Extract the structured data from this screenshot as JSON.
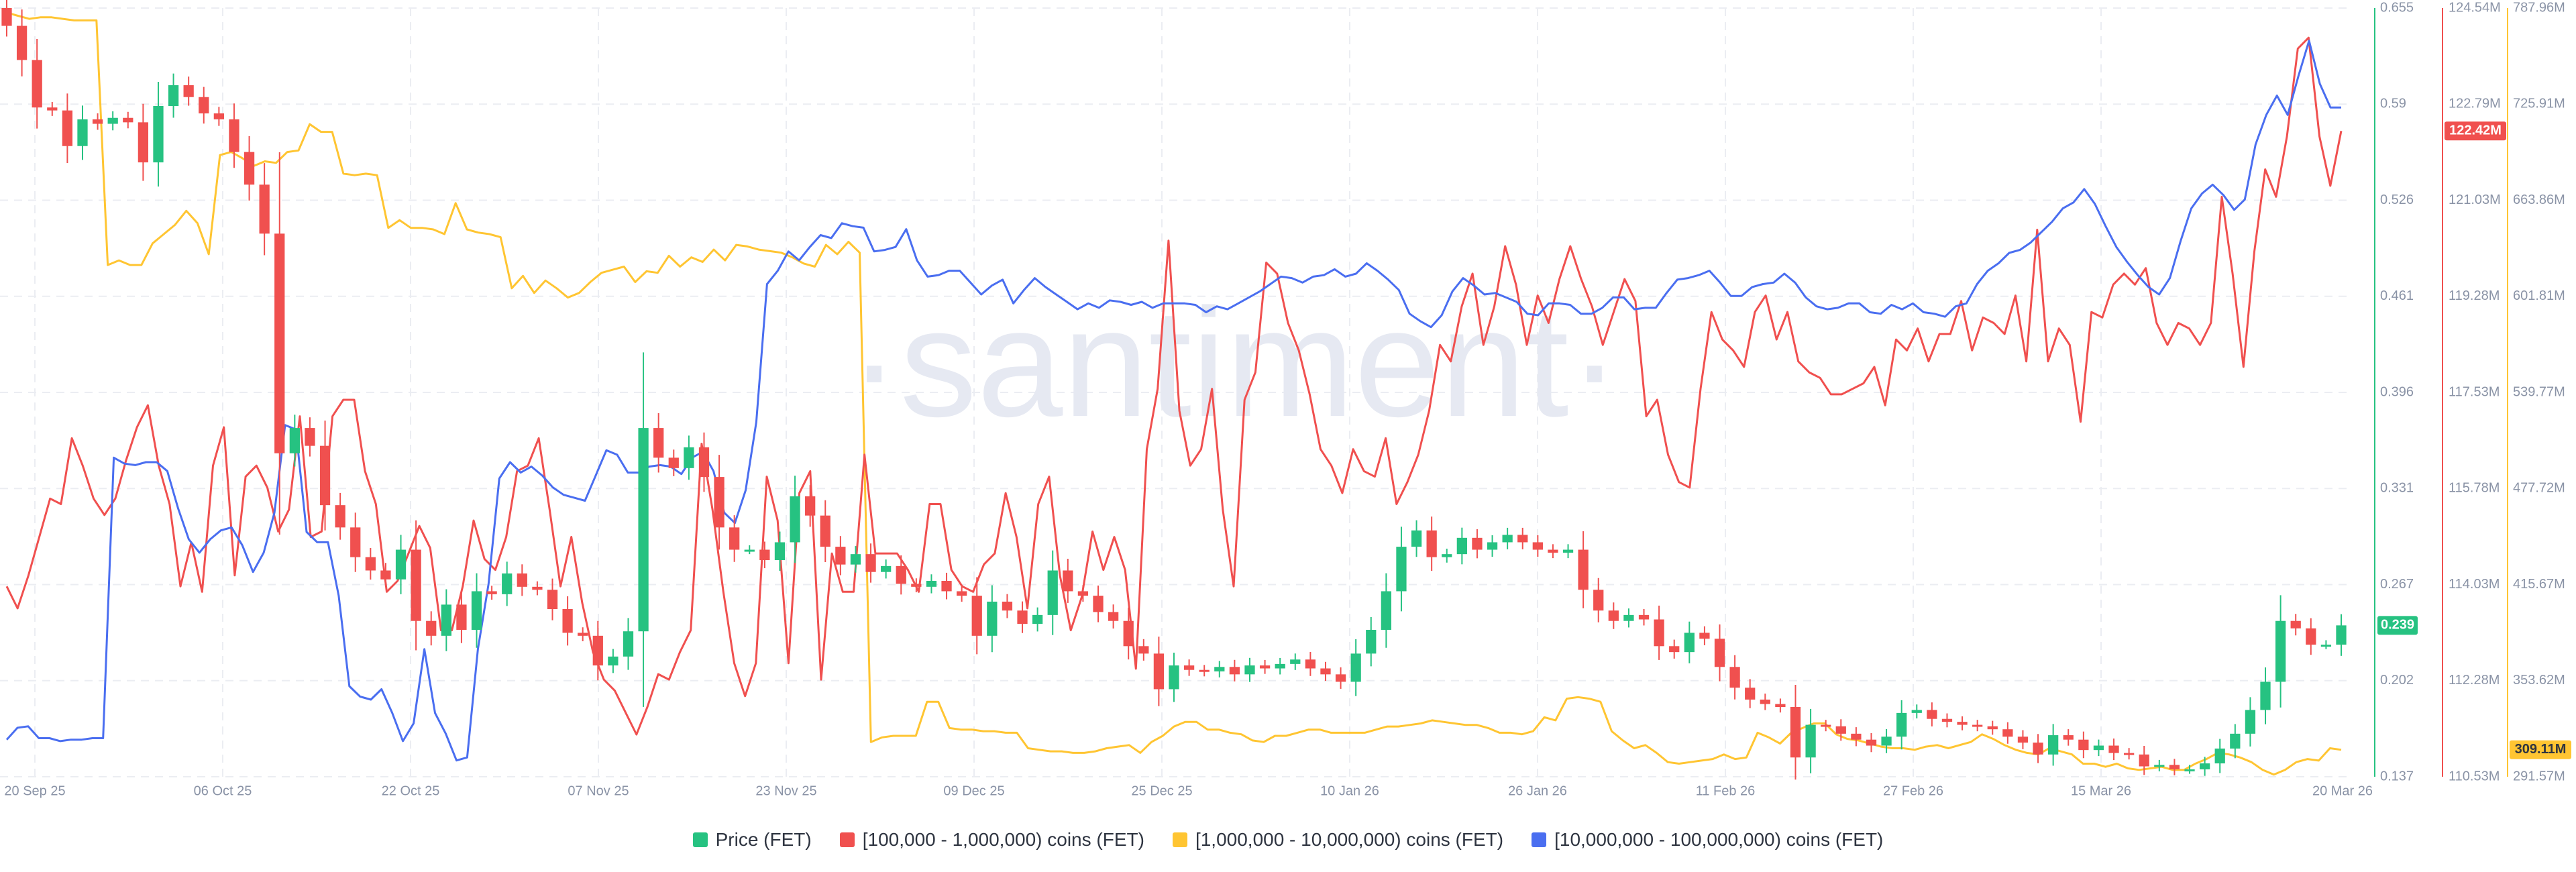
{
  "watermark": "·santiment·",
  "legend": {
    "items": [
      {
        "label": "Price (FET)",
        "color": "#26c281"
      },
      {
        "label": "[100,000  - 1,000,000) coins (FET)",
        "color": "#f0504f"
      },
      {
        "label": "[1,000,000 - 10,000,000) coins (FET)",
        "color": "#ffc532"
      },
      {
        "label": "[10,000,000 - 100,000,000) coins (FET)",
        "color": "#4a6ef0"
      }
    ]
  },
  "chart_data": {
    "type": "line",
    "x_labels": [
      "20 Sep 25",
      "06 Oct 25",
      "22 Oct 25",
      "07 Nov 25",
      "23 Nov 25",
      "09 Dec 25",
      "25 Dec 25",
      "10 Jan 26",
      "26 Jan 26",
      "11 Feb 26",
      "27 Feb 26",
      "15 Mar 26",
      "20 Mar 26"
    ],
    "x_start": "2025-09-20",
    "x_end": "2026-03-20",
    "grid": true,
    "legend_position": "bottom",
    "axes": {
      "price": {
        "color": "#26c281",
        "ticks": [
          "0.655",
          "0.59",
          "0.526",
          "0.461",
          "0.396",
          "0.331",
          "0.267",
          "0.202",
          "0.137"
        ],
        "min": 0.137,
        "max": 0.655,
        "last_label": "0.239"
      },
      "red": {
        "color": "#f0504f",
        "ticks": [
          "124.54M",
          "122.79M",
          "121.03M",
          "119.28M",
          "117.53M",
          "115.78M",
          "114.03M",
          "112.28M",
          "110.53M"
        ],
        "min": 110.53,
        "max": 124.54,
        "last_label": "122.42M"
      },
      "yellow": {
        "color": "#ffc532",
        "ticks": [
          "787.96M",
          "725.91M",
          "663.86M",
          "601.81M",
          "539.77M",
          "477.72M",
          "415.67M",
          "353.62M",
          "291.57M"
        ],
        "min": 291.57,
        "max": 787.96,
        "last_label": "309.11M"
      }
    },
    "price_candles": {
      "name": "Price (FET)",
      "up_color": "#26c281",
      "down_color": "#f0504f",
      "close": [
        0.643,
        0.62,
        0.588,
        0.586,
        0.562,
        0.58,
        0.577,
        0.581,
        0.578,
        0.551,
        0.589,
        0.603,
        0.595,
        0.584,
        0.58,
        0.558,
        0.536,
        0.503,
        0.355,
        0.372,
        0.36,
        0.32,
        0.305,
        0.285,
        0.276,
        0.27,
        0.29,
        0.242,
        0.232,
        0.253,
        0.236,
        0.262,
        0.26,
        0.274,
        0.265,
        0.263,
        0.25,
        0.234,
        0.232,
        0.212,
        0.218,
        0.235,
        0.372,
        0.352,
        0.345,
        0.359,
        0.339,
        0.305,
        0.29,
        0.29,
        0.283,
        0.295,
        0.326,
        0.313,
        0.292,
        0.28,
        0.287,
        0.275,
        0.279,
        0.267,
        0.265,
        0.269,
        0.262,
        0.259,
        0.232,
        0.255,
        0.249,
        0.24,
        0.246,
        0.276,
        0.262,
        0.259,
        0.248,
        0.242,
        0.225,
        0.22,
        0.196,
        0.212,
        0.209,
        0.208,
        0.211,
        0.206,
        0.212,
        0.21,
        0.213,
        0.216,
        0.21,
        0.206,
        0.201,
        0.22,
        0.236,
        0.262,
        0.292,
        0.303,
        0.285,
        0.287,
        0.298,
        0.29,
        0.295,
        0.3,
        0.295,
        0.29,
        0.288,
        0.29,
        0.263,
        0.249,
        0.242,
        0.246,
        0.243,
        0.225,
        0.221,
        0.234,
        0.23,
        0.211,
        0.197,
        0.189,
        0.186,
        0.184,
        0.15,
        0.172,
        0.171,
        0.166,
        0.162,
        0.158,
        0.164,
        0.18,
        0.182,
        0.176,
        0.174,
        0.172,
        0.171,
        0.169,
        0.164,
        0.16,
        0.152,
        0.165,
        0.162,
        0.155,
        0.158,
        0.153,
        0.152,
        0.144,
        0.145,
        0.142,
        0.142,
        0.146,
        0.156,
        0.166,
        0.182,
        0.201,
        0.242,
        0.237,
        0.226,
        0.226,
        0.239
      ]
    },
    "series": [
      {
        "name": "[100,000  - 1,000,000) coins (FET)",
        "color": "#f0504f",
        "axis": "red",
        "values": [
          114.0,
          113.6,
          114.2,
          114.9,
          115.6,
          115.5,
          116.7,
          116.2,
          115.6,
          115.3,
          115.6,
          116.3,
          116.9,
          117.3,
          116.2,
          115.5,
          114.0,
          114.8,
          113.9,
          116.2,
          116.9,
          114.2,
          116.0,
          116.2,
          115.8,
          115.0,
          115.4,
          117.1,
          114.9,
          115.0,
          117.1,
          117.4,
          117.4,
          116.1,
          115.5,
          113.9,
          114.1,
          114.6,
          115.1,
          114.7,
          113.2,
          113.2,
          114.0,
          115.2,
          114.5,
          114.3,
          114.9,
          116.1,
          116.2,
          116.7,
          115.4,
          114.0,
          114.9,
          113.7,
          112.8,
          112.3,
          112.1,
          111.7,
          111.3,
          111.8,
          112.4,
          112.3,
          112.8,
          113.2,
          116.6,
          115.4,
          113.9,
          112.6,
          112.0,
          112.6,
          116.0,
          115.2,
          112.6,
          115.7,
          116.1,
          112.3,
          114.6,
          113.9,
          113.9,
          116.4,
          114.6,
          114.6,
          114.6,
          114.3,
          113.9,
          115.5,
          115.5,
          114.3,
          114.0,
          113.9,
          114.4,
          114.6,
          115.7,
          114.9,
          113.6,
          115.5,
          116.0,
          114.2,
          113.2,
          113.8,
          115.0,
          114.3,
          114.9,
          114.3,
          112.5,
          116.5,
          117.6,
          120.3,
          117.2,
          116.2,
          116.5,
          117.6,
          115.4,
          114.0,
          117.4,
          117.9,
          119.9,
          119.7,
          118.8,
          118.3,
          117.5,
          116.5,
          116.2,
          115.7,
          116.5,
          116.1,
          116.0,
          116.7,
          115.5,
          115.9,
          116.4,
          117.2,
          118.4,
          118.1,
          119.1,
          119.7,
          118.4,
          119.1,
          120.2,
          119.5,
          118.4,
          119.3,
          118.8,
          119.6,
          120.2,
          119.6,
          119.1,
          118.4,
          119.0,
          119.6,
          119.2,
          117.1,
          117.4,
          116.4,
          115.9,
          115.8,
          117.6,
          119.0,
          118.5,
          118.3,
          118.0,
          119.0,
          119.3,
          118.5,
          119.0,
          118.1,
          117.9,
          117.8,
          117.5,
          117.5,
          117.6,
          117.7,
          118.0,
          117.3,
          118.5,
          118.3,
          118.7,
          118.1,
          118.6,
          118.6,
          119.2,
          118.3,
          118.9,
          118.8,
          118.6,
          119.3,
          118.1,
          120.5,
          118.1,
          118.7,
          118.4,
          117.0,
          119.0,
          118.9,
          119.5,
          119.7,
          119.5,
          119.8,
          118.8,
          118.4,
          118.8,
          118.7,
          118.4,
          118.8,
          121.1,
          119.7,
          118.0,
          120.1,
          121.6,
          121.1,
          122.2,
          123.8,
          124.0,
          122.2,
          121.3,
          122.3
        ]
      },
      {
        "name": "[1,000,000 - 10,000,000) coins (FET)",
        "color": "#ffc532",
        "axis": "yellow",
        "values": [
          785.0,
          783.0,
          781.0,
          782.0,
          782.0,
          781.0,
          780.0,
          780.0,
          780.0,
          622.0,
          625.0,
          622.0,
          622.0,
          636.0,
          642.0,
          648.0,
          657.0,
          649.0,
          629.0,
          693.0,
          695.0,
          691.0,
          686.0,
          689.0,
          688.0,
          695.0,
          696.0,
          713.0,
          708.0,
          708.0,
          681.0,
          680.0,
          681.0,
          680.0,
          646.0,
          651.0,
          646.0,
          646.0,
          645.0,
          642.0,
          662.0,
          645.0,
          643.0,
          642.0,
          640.0,
          607.0,
          615.0,
          604.0,
          612.0,
          607.0,
          601.0,
          604.0,
          611.0,
          617.0,
          619.0,
          621.0,
          611.0,
          618.0,
          617.0,
          628.0,
          621.0,
          627.0,
          624.0,
          632.0,
          625.0,
          635.0,
          634.0,
          632.0,
          631.0,
          630.0,
          627.0,
          623.0,
          621.0,
          635.0,
          629.0,
          637.0,
          630.0,
          314.0,
          317.0,
          318.0,
          318.0,
          318.0,
          340.0,
          340.0,
          323.0,
          322.0,
          322.0,
          321.0,
          321.0,
          320.0,
          320.0,
          310.0,
          309.0,
          308.0,
          308.0,
          307.0,
          307.0,
          308.0,
          310.0,
          311.0,
          312.0,
          307.0,
          314.0,
          318.0,
          324.0,
          327.0,
          327.0,
          322.0,
          322.0,
          320.0,
          319.0,
          315.0,
          314.0,
          318.0,
          318.0,
          320.0,
          322.0,
          322.0,
          320.0,
          320.0,
          320.0,
          320.0,
          322.0,
          324.0,
          324.0,
          325.0,
          326.0,
          328.0,
          327.0,
          326.0,
          325.0,
          325.0,
          323.0,
          320.0,
          320.0,
          319.0,
          321.0,
          330.0,
          328.0,
          342.0,
          343.0,
          342.0,
          340.0,
          321.0,
          315.0,
          310.0,
          312.0,
          307.0,
          301.0,
          300.0,
          301.0,
          302.0,
          303.0,
          306.0,
          303.0,
          304.0,
          320.0,
          317.0,
          313.0,
          320.0,
          323.0,
          326.0,
          326.0,
          319.0,
          316.0,
          315.0,
          313.0,
          311.0,
          310.0,
          310.0,
          309.0,
          311.0,
          312.0,
          310.0,
          312.0,
          314.0,
          319.0,
          316.0,
          312.0,
          309.0,
          307.0,
          306.0,
          310.0,
          308.0,
          306.0,
          300.0,
          300.0,
          298.0,
          300.0,
          297.0,
          296.0,
          297.0,
          298.0,
          296.0,
          296.0,
          300.0,
          303.0,
          307.0,
          306.0,
          304.0,
          301.0,
          296.0,
          293.0,
          296.0,
          301.0,
          303.0,
          302.0,
          310.0,
          309.0
        ]
      },
      {
        "name": "[10,000,000 - 100,000,000) coins (FET)",
        "color": "#4a6ef0",
        "axis": "price",
        "values": [
          0.162,
          0.17,
          0.171,
          0.163,
          0.163,
          0.161,
          0.162,
          0.162,
          0.163,
          0.163,
          0.352,
          0.348,
          0.347,
          0.349,
          0.349,
          0.343,
          0.318,
          0.297,
          0.288,
          0.297,
          0.303,
          0.305,
          0.293,
          0.275,
          0.288,
          0.315,
          0.374,
          0.371,
          0.302,
          0.295,
          0.295,
          0.259,
          0.198,
          0.191,
          0.189,
          0.196,
          0.18,
          0.161,
          0.173,
          0.223,
          0.18,
          0.166,
          0.148,
          0.15,
          0.223,
          0.267,
          0.338,
          0.349,
          0.342,
          0.346,
          0.34,
          0.332,
          0.327,
          0.325,
          0.323,
          0.34,
          0.357,
          0.354,
          0.342,
          0.342,
          0.346,
          0.347,
          0.346,
          0.341,
          0.352,
          0.356,
          0.343,
          0.315,
          0.308,
          0.33,
          0.376,
          0.469,
          0.478,
          0.491,
          0.485,
          0.494,
          0.502,
          0.5,
          0.51,
          0.508,
          0.507,
          0.491,
          0.492,
          0.494,
          0.506,
          0.485,
          0.474,
          0.475,
          0.478,
          0.478,
          0.47,
          0.462,
          0.468,
          0.472,
          0.456,
          0.465,
          0.473,
          0.467,
          0.462,
          0.457,
          0.452,
          0.456,
          0.453,
          0.458,
          0.457,
          0.455,
          0.457,
          0.453,
          0.456,
          0.456,
          0.456,
          0.455,
          0.45,
          0.454,
          0.452,
          0.456,
          0.46,
          0.464,
          0.469,
          0.474,
          0.473,
          0.47,
          0.474,
          0.475,
          0.479,
          0.474,
          0.476,
          0.483,
          0.478,
          0.472,
          0.465,
          0.449,
          0.444,
          0.44,
          0.448,
          0.464,
          0.473,
          0.468,
          0.462,
          0.463,
          0.46,
          0.457,
          0.449,
          0.448,
          0.456,
          0.456,
          0.455,
          0.449,
          0.449,
          0.453,
          0.46,
          0.46,
          0.452,
          0.453,
          0.453,
          0.463,
          0.472,
          0.473,
          0.475,
          0.478,
          0.47,
          0.461,
          0.461,
          0.467,
          0.469,
          0.47,
          0.476,
          0.47,
          0.46,
          0.454,
          0.452,
          0.453,
          0.456,
          0.456,
          0.45,
          0.449,
          0.455,
          0.452,
          0.456,
          0.45,
          0.449,
          0.447,
          0.454,
          0.456,
          0.469,
          0.478,
          0.483,
          0.49,
          0.492,
          0.497,
          0.504,
          0.511,
          0.52,
          0.524,
          0.533,
          0.523,
          0.508,
          0.494,
          0.484,
          0.475,
          0.467,
          0.462,
          0.473,
          0.498,
          0.52,
          0.53,
          0.536,
          0.529,
          0.519,
          0.526,
          0.563,
          0.583,
          0.596,
          0.583,
          0.609,
          0.633,
          0.604,
          0.588,
          0.588
        ]
      }
    ]
  }
}
